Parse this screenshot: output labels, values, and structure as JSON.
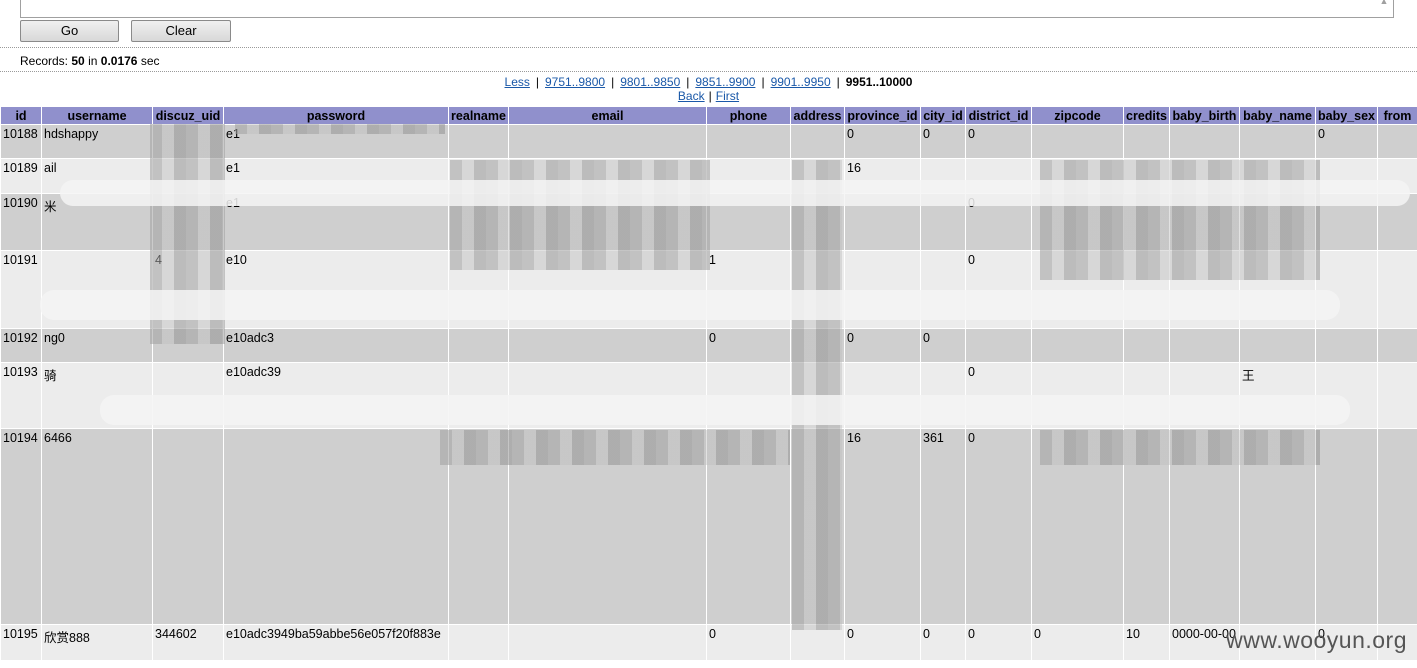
{
  "toolbar": {
    "go_label": "Go",
    "clear_label": "Clear"
  },
  "records": {
    "prefix": "Records:",
    "count": "50",
    "in_label": "in",
    "time": "0.0176",
    "unit": "sec"
  },
  "pager": {
    "less": "Less",
    "ranges": [
      "9751..9800",
      "9801..9850",
      "9851..9900",
      "9901..9950"
    ],
    "current": "9951..10000",
    "back": "Back",
    "first": "First"
  },
  "table": {
    "columns": [
      "id",
      "username",
      "discuz_uid",
      "password",
      "realname",
      "email",
      "phone",
      "address",
      "province_id",
      "city_id",
      "district_id",
      "zipcode",
      "credits",
      "baby_birth",
      "baby_name",
      "baby_sex",
      "from"
    ],
    "rows": [
      [
        "10188",
        "hdshappy",
        "",
        "e1",
        "",
        "",
        "",
        "",
        "0",
        "0",
        "0",
        "",
        "",
        "",
        "",
        "0",
        ""
      ],
      [
        "10189",
        "ail",
        "",
        "e1",
        "",
        "",
        "",
        "",
        "16",
        "",
        "",
        "",
        "",
        "",
        "",
        "",
        ""
      ],
      [
        "10190",
        "米",
        "",
        "e1",
        "",
        "",
        "",
        "",
        "",
        "",
        "0",
        "",
        "",
        "",
        "",
        "",
        ""
      ],
      [
        "10191",
        "",
        "4",
        "e10",
        "",
        "",
        "1",
        "",
        "",
        "",
        "0",
        "",
        "",
        "",
        "",
        "",
        ""
      ],
      [
        "10192",
        "ng0",
        "",
        "e10adc3",
        "",
        "",
        "0",
        "",
        "0",
        "0",
        "",
        "",
        "",
        "",
        "",
        "",
        ""
      ],
      [
        "10193",
        "骑",
        "",
        "e10adc39",
        "",
        "",
        "",
        "",
        "",
        "",
        "0",
        "",
        "",
        "",
        "王",
        "",
        ""
      ],
      [
        "10194",
        "6466",
        "",
        "",
        "",
        "",
        "",
        "",
        "16",
        "361",
        "0",
        "",
        "",
        "",
        "",
        "",
        ""
      ],
      [
        "10195",
        "欣赏888",
        "344602",
        "e10adc3949ba59abbe56e057f20f883e",
        "",
        "",
        "0",
        "",
        "0",
        "0",
        "0",
        "0",
        "10",
        "0000-00-00",
        "",
        "0",
        ""
      ]
    ]
  },
  "watermark": "www.wooyun.org"
}
